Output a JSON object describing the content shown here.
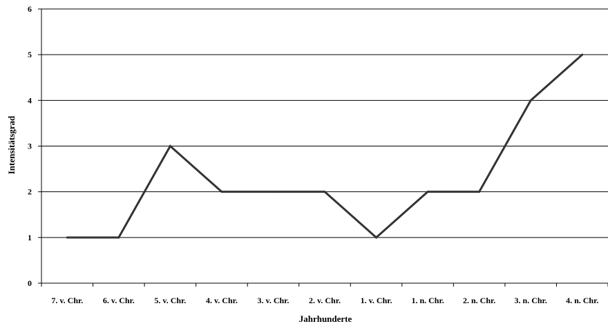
{
  "chart_data": {
    "type": "line",
    "categories": [
      "7. v. Chr.",
      "6. v. Chr.",
      "5. v. Chr.",
      "4. v. Chr.",
      "3. v. Chr.",
      "2. v. Chr.",
      "1. v. Chr.",
      "1. n. Chr.",
      "2. n. Chr.",
      "3. n. Chr.",
      "4. n. Chr."
    ],
    "series": [
      {
        "values": [
          1,
          1,
          3,
          2,
          2,
          2,
          1,
          2,
          2,
          4,
          5
        ]
      }
    ],
    "title": "",
    "xlabel": "Jahrhunderte",
    "ylabel": "Intensitätsgrad",
    "ylim": [
      0,
      6
    ],
    "yticks": [
      0,
      1,
      2,
      3,
      4,
      5,
      6
    ],
    "grid": true,
    "line_color": "#333333"
  }
}
